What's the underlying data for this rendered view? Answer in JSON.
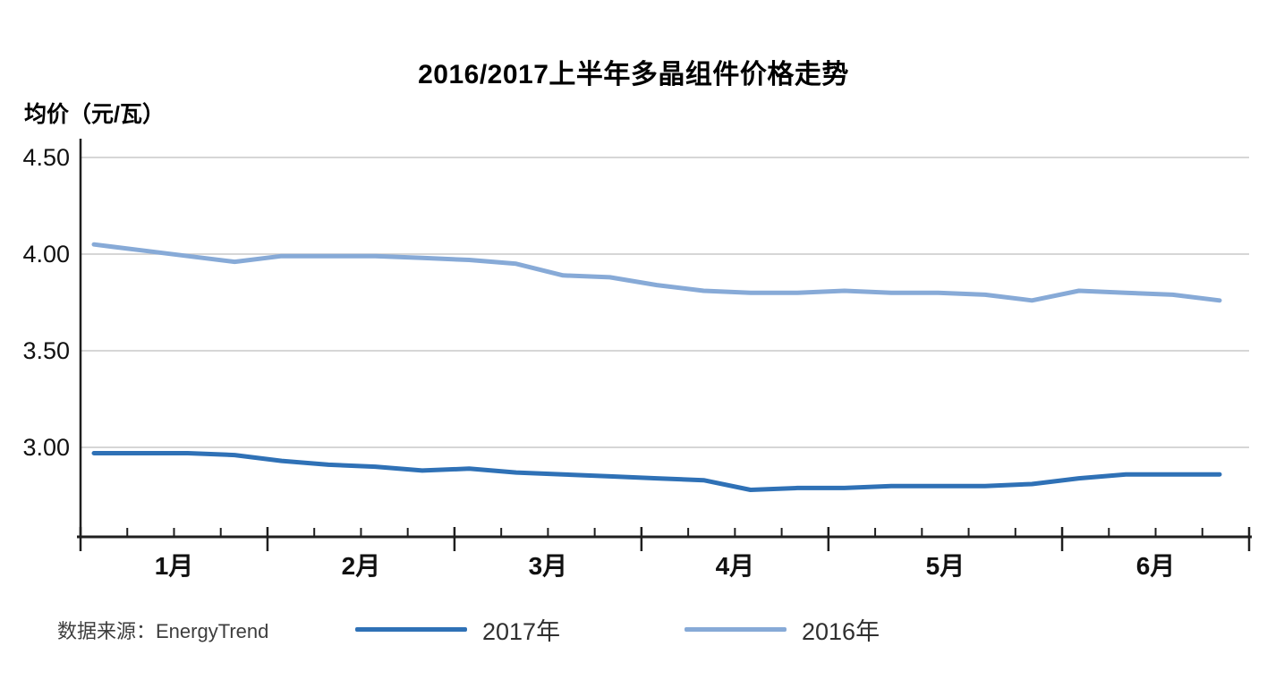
{
  "title": "2016/2017上半年多晶组件价格走势",
  "y_axis_unit": "均价（元/瓦）",
  "source": "数据来源：EnergyTrend",
  "legend": [
    {
      "label": "2017年",
      "color": "#2f71b6"
    },
    {
      "label": "2016年",
      "color": "#87aad7"
    }
  ],
  "colors": {
    "series_2017": "#2f71b6",
    "series_2016": "#87aad7",
    "gridline": "#c9c9c9",
    "axis": "#1f1f1f",
    "tick_label": "#111111"
  },
  "chart_data": {
    "type": "line",
    "title": "2016/2017上半年多晶组件价格走势",
    "xlabel": "",
    "ylabel": "均价（元/瓦）",
    "x_unit": "周 (weekly points)",
    "grid": true,
    "legend_position": "bottom",
    "ylim": [
      2.54,
      4.59
    ],
    "y_ticks": [
      4.5,
      4.0,
      3.5,
      3.0
    ],
    "months": [
      {
        "label": "1月",
        "weeks": 4
      },
      {
        "label": "2月",
        "weeks": 4
      },
      {
        "label": "3月",
        "weeks": 4
      },
      {
        "label": "4月",
        "weeks": 4
      },
      {
        "label": "5月",
        "weeks": 5
      },
      {
        "label": "6月",
        "weeks": 4
      }
    ],
    "series": [
      {
        "name": "2017年",
        "color": "#2f71b6",
        "values": [
          2.97,
          2.97,
          2.97,
          2.96,
          2.93,
          2.91,
          2.9,
          2.88,
          2.89,
          2.87,
          2.86,
          2.85,
          2.84,
          2.83,
          2.78,
          2.79,
          2.79,
          2.8,
          2.8,
          2.8,
          2.81,
          2.84,
          2.86,
          2.86,
          2.86
        ]
      },
      {
        "name": "2016年",
        "color": "#87aad7",
        "values": [
          4.05,
          4.02,
          3.99,
          3.96,
          3.99,
          3.99,
          3.99,
          3.98,
          3.97,
          3.95,
          3.89,
          3.88,
          3.84,
          3.81,
          3.8,
          3.8,
          3.81,
          3.8,
          3.8,
          3.79,
          3.76,
          3.81,
          3.8,
          3.79,
          3.76
        ]
      }
    ]
  }
}
